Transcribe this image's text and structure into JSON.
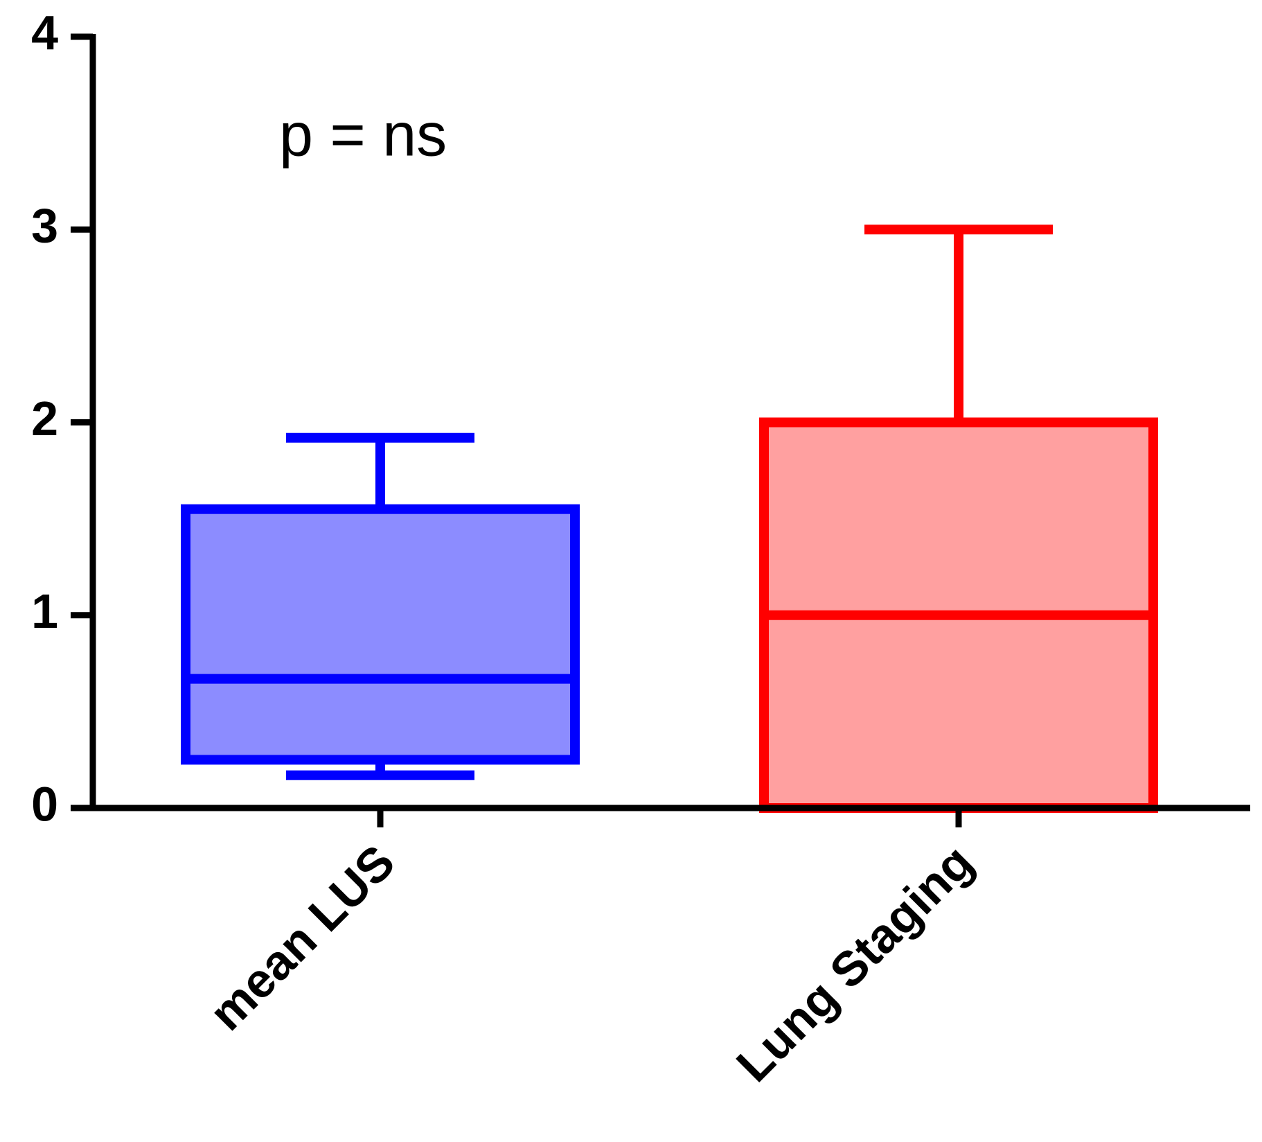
{
  "chart_data": {
    "type": "box",
    "categories": [
      "mean LUS",
      "Lung Staging"
    ],
    "boxes": [
      {
        "min": 0.17,
        "q1": 0.25,
        "median": 0.67,
        "q3": 1.55,
        "max": 1.92,
        "color": "#0000ff",
        "fill": "#8c8cff"
      },
      {
        "min": 0,
        "q1": 0,
        "median": 1,
        "q3": 2,
        "max": 3,
        "color": "#ff0000",
        "fill": "#ffa0a0"
      }
    ],
    "ylim": [
      0,
      4
    ],
    "yticks": [
      0,
      1,
      2,
      3,
      4
    ],
    "annotation": "p = ns"
  }
}
